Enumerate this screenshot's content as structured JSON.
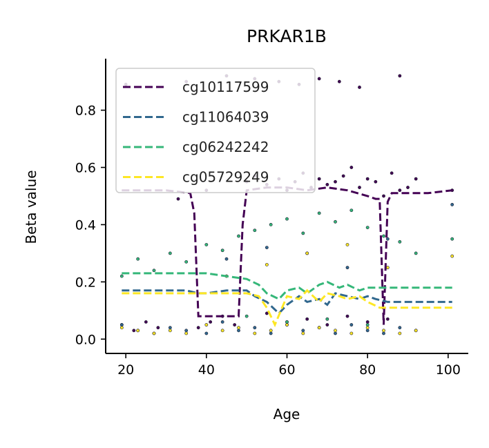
{
  "chart_data": {
    "type": "line",
    "title": "PRKAR1B",
    "xlabel": "Age",
    "ylabel": "Beta value",
    "xlim": [
      15,
      105
    ],
    "ylim": [
      -0.05,
      0.98
    ],
    "xticks": [
      20,
      40,
      60,
      80,
      100
    ],
    "yticks": [
      0.0,
      0.2,
      0.4,
      0.6,
      0.8
    ],
    "ytick_labels": [
      "0.0",
      "0.2",
      "0.4",
      "0.6",
      "0.8"
    ],
    "grid": false,
    "legend_position": "top-left",
    "series": [
      {
        "name": "cg10117599",
        "color": "#440154",
        "line": {
          "x": [
            19,
            30,
            36,
            37,
            38,
            40,
            45,
            48,
            49,
            50,
            55,
            60,
            65,
            70,
            75,
            80,
            82,
            83,
            84,
            85,
            86,
            90,
            95,
            101
          ],
          "y": [
            0.52,
            0.52,
            0.51,
            0.44,
            0.08,
            0.08,
            0.08,
            0.08,
            0.4,
            0.52,
            0.53,
            0.53,
            0.52,
            0.53,
            0.52,
            0.5,
            0.49,
            0.49,
            0.05,
            0.48,
            0.51,
            0.51,
            0.51,
            0.52
          ]
        },
        "points": {
          "x": [
            19,
            22,
            25,
            28,
            33,
            38,
            40,
            41,
            44,
            47,
            50,
            52,
            55,
            58,
            60,
            62,
            64,
            66,
            68,
            70,
            72,
            74,
            76,
            78,
            80,
            82,
            84,
            86,
            88,
            90,
            92,
            101,
            55,
            60,
            65,
            70,
            75,
            80,
            85,
            20,
            35,
            45,
            52,
            58,
            63,
            68,
            73,
            78,
            88
          ],
          "y": [
            0.05,
            0.03,
            0.06,
            0.04,
            0.49,
            0.04,
            0.52,
            0.06,
            0.08,
            0.05,
            0.55,
            0.57,
            0.54,
            0.56,
            0.52,
            0.55,
            0.58,
            0.53,
            0.56,
            0.54,
            0.55,
            0.57,
            0.6,
            0.53,
            0.56,
            0.55,
            0.5,
            0.58,
            0.52,
            0.53,
            0.56,
            0.52,
            0.09,
            0.06,
            0.07,
            0.05,
            0.08,
            0.06,
            0.07,
            0.89,
            0.9,
            0.92,
            0.91,
            0.9,
            0.89,
            0.91,
            0.9,
            0.88,
            0.92
          ]
        }
      },
      {
        "name": "cg11064039",
        "color": "#31688e",
        "line": {
          "x": [
            19,
            25,
            30,
            35,
            38,
            40,
            45,
            50,
            52,
            55,
            58,
            60,
            63,
            65,
            68,
            70,
            72,
            75,
            78,
            80,
            82,
            85,
            88,
            90,
            95,
            101
          ],
          "y": [
            0.17,
            0.17,
            0.17,
            0.17,
            0.16,
            0.16,
            0.17,
            0.17,
            0.15,
            0.13,
            0.09,
            0.12,
            0.15,
            0.13,
            0.14,
            0.12,
            0.16,
            0.15,
            0.14,
            0.15,
            0.14,
            0.13,
            0.13,
            0.13,
            0.13,
            0.13
          ]
        },
        "points": {
          "x": [
            19,
            23,
            27,
            31,
            35,
            40,
            44,
            48,
            52,
            56,
            60,
            64,
            68,
            72,
            76,
            80,
            84,
            88,
            92,
            101,
            45,
            55,
            65,
            75,
            85
          ],
          "y": [
            0.05,
            0.03,
            0.02,
            0.04,
            0.03,
            0.02,
            0.06,
            0.03,
            0.04,
            0.02,
            0.05,
            0.03,
            0.04,
            0.02,
            0.05,
            0.03,
            0.02,
            0.04,
            0.03,
            0.47,
            0.28,
            0.32,
            0.3,
            0.25,
            0.35
          ]
        }
      },
      {
        "name": "cg06242242",
        "color": "#35b779",
        "line": {
          "x": [
            19,
            25,
            30,
            35,
            40,
            45,
            50,
            53,
            55,
            58,
            60,
            63,
            65,
            68,
            70,
            73,
            75,
            78,
            80,
            83,
            85,
            90,
            95,
            101
          ],
          "y": [
            0.23,
            0.23,
            0.23,
            0.23,
            0.23,
            0.22,
            0.21,
            0.19,
            0.16,
            0.14,
            0.17,
            0.18,
            0.16,
            0.19,
            0.2,
            0.18,
            0.19,
            0.17,
            0.18,
            0.18,
            0.18,
            0.18,
            0.18,
            0.18
          ]
        },
        "points": {
          "x": [
            19,
            23,
            27,
            31,
            35,
            40,
            44,
            48,
            52,
            56,
            60,
            64,
            68,
            72,
            76,
            80,
            84,
            88,
            92,
            101,
            50,
            60,
            70,
            80
          ],
          "y": [
            0.22,
            0.28,
            0.24,
            0.3,
            0.27,
            0.33,
            0.31,
            0.36,
            0.38,
            0.4,
            0.42,
            0.37,
            0.44,
            0.41,
            0.45,
            0.39,
            0.36,
            0.34,
            0.3,
            0.35,
            0.08,
            0.06,
            0.07,
            0.05
          ]
        }
      },
      {
        "name": "cg05729249",
        "color": "#fde725",
        "line": {
          "x": [
            19,
            25,
            30,
            35,
            40,
            45,
            50,
            53,
            55,
            57,
            60,
            63,
            65,
            68,
            70,
            73,
            75,
            78,
            80,
            83,
            85,
            90,
            95,
            101
          ],
          "y": [
            0.16,
            0.16,
            0.16,
            0.16,
            0.16,
            0.16,
            0.16,
            0.15,
            0.11,
            0.05,
            0.15,
            0.14,
            0.17,
            0.13,
            0.16,
            0.15,
            0.14,
            0.15,
            0.13,
            0.11,
            0.11,
            0.11,
            0.11,
            0.11
          ]
        },
        "points": {
          "x": [
            19,
            23,
            27,
            31,
            35,
            40,
            44,
            48,
            52,
            56,
            60,
            64,
            68,
            72,
            76,
            80,
            84,
            88,
            92,
            101,
            45,
            55,
            65,
            75,
            85
          ],
          "y": [
            0.04,
            0.03,
            0.02,
            0.03,
            0.02,
            0.05,
            0.03,
            0.04,
            0.02,
            0.03,
            0.05,
            0.02,
            0.04,
            0.03,
            0.02,
            0.04,
            0.03,
            0.02,
            0.03,
            0.29,
            0.22,
            0.26,
            0.3,
            0.33,
            0.25
          ]
        }
      }
    ]
  }
}
